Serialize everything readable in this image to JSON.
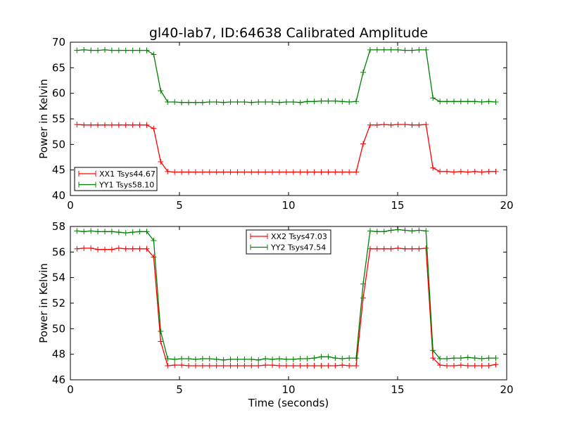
{
  "figure": {
    "title": "gl40-lab7, ID:64638 Calibrated Amplitude",
    "xlabel": "Time (seconds)"
  },
  "colors": {
    "xx": "#ff0000",
    "yy": "#008000"
  },
  "chart_data": [
    {
      "type": "line",
      "ylabel": "Power in Kelvin",
      "xlim": [
        0,
        20
      ],
      "ylim": [
        40,
        70
      ],
      "xticks": [
        0,
        5,
        10,
        15,
        20
      ],
      "yticks": [
        40,
        45,
        50,
        55,
        60,
        65,
        70
      ],
      "grid": false,
      "legend_position": "lower-left",
      "series": [
        {
          "name": "XX1 Tsys44.67",
          "color": "#ff0000",
          "x": [
            0.3,
            0.62,
            0.94,
            1.26,
            1.58,
            1.9,
            2.22,
            2.54,
            2.86,
            3.18,
            3.5,
            3.82,
            4.14,
            4.46,
            4.78,
            5.1,
            5.42,
            5.74,
            6.06,
            6.38,
            6.7,
            7.02,
            7.34,
            7.66,
            7.98,
            8.3,
            8.62,
            8.94,
            9.26,
            9.58,
            9.9,
            10.22,
            10.54,
            10.86,
            11.18,
            11.5,
            11.82,
            12.14,
            12.46,
            12.78,
            13.1,
            13.42,
            13.74,
            14.06,
            14.38,
            14.7,
            15.02,
            15.34,
            15.66,
            15.98,
            16.3,
            16.62,
            16.94,
            17.26,
            17.58,
            17.9,
            18.22,
            18.54,
            18.86,
            19.18,
            19.5
          ],
          "y": [
            53.9,
            53.8,
            53.8,
            53.8,
            53.8,
            53.8,
            53.8,
            53.8,
            53.8,
            53.8,
            53.8,
            53.1,
            46.6,
            44.7,
            44.6,
            44.6,
            44.6,
            44.6,
            44.6,
            44.6,
            44.6,
            44.6,
            44.6,
            44.6,
            44.6,
            44.6,
            44.6,
            44.6,
            44.6,
            44.6,
            44.6,
            44.6,
            44.6,
            44.6,
            44.6,
            44.6,
            44.6,
            44.6,
            44.6,
            44.6,
            44.6,
            50.1,
            53.8,
            53.8,
            53.9,
            53.8,
            53.9,
            53.9,
            53.8,
            53.8,
            53.9,
            45.4,
            44.7,
            44.7,
            44.6,
            44.7,
            44.6,
            44.7,
            44.6,
            44.7,
            44.7
          ]
        },
        {
          "name": "YY1 Tsys58.10",
          "color": "#008000",
          "x": [
            0.3,
            0.62,
            0.94,
            1.26,
            1.58,
            1.9,
            2.22,
            2.54,
            2.86,
            3.18,
            3.5,
            3.82,
            4.14,
            4.46,
            4.78,
            5.1,
            5.42,
            5.74,
            6.06,
            6.38,
            6.7,
            7.02,
            7.34,
            7.66,
            7.98,
            8.3,
            8.62,
            8.94,
            9.26,
            9.58,
            9.9,
            10.22,
            10.54,
            10.86,
            11.18,
            11.5,
            11.82,
            12.14,
            12.46,
            12.78,
            13.1,
            13.42,
            13.74,
            14.06,
            14.38,
            14.7,
            15.02,
            15.34,
            15.66,
            15.98,
            16.3,
            16.62,
            16.94,
            17.26,
            17.58,
            17.9,
            18.22,
            18.54,
            18.86,
            19.18,
            19.5
          ],
          "y": [
            68.4,
            68.5,
            68.4,
            68.4,
            68.5,
            68.4,
            68.4,
            68.4,
            68.4,
            68.4,
            68.4,
            67.6,
            60.5,
            58.3,
            58.3,
            58.2,
            58.2,
            58.2,
            58.2,
            58.3,
            58.3,
            58.2,
            58.3,
            58.3,
            58.3,
            58.2,
            58.3,
            58.3,
            58.3,
            58.2,
            58.3,
            58.3,
            58.2,
            58.4,
            58.4,
            58.5,
            58.5,
            58.5,
            58.4,
            58.3,
            58.4,
            64.1,
            68.5,
            68.5,
            68.5,
            68.5,
            68.5,
            68.4,
            68.4,
            68.5,
            68.5,
            59.1,
            58.4,
            58.4,
            58.4,
            58.4,
            58.4,
            58.4,
            58.3,
            58.4,
            58.3
          ]
        }
      ]
    },
    {
      "type": "line",
      "ylabel": "Power in Kelvin",
      "xlim": [
        0,
        20
      ],
      "ylim": [
        46,
        58
      ],
      "xticks": [
        0,
        5,
        10,
        15,
        20
      ],
      "yticks": [
        46,
        48,
        50,
        52,
        54,
        56,
        58
      ],
      "grid": false,
      "legend_position": "upper-center",
      "series": [
        {
          "name": "XX2 Tsys47.03",
          "color": "#ff0000",
          "x": [
            0.3,
            0.62,
            0.94,
            1.26,
            1.58,
            1.9,
            2.22,
            2.54,
            2.86,
            3.18,
            3.5,
            3.82,
            4.14,
            4.46,
            4.78,
            5.1,
            5.42,
            5.74,
            6.06,
            6.38,
            6.7,
            7.02,
            7.34,
            7.66,
            7.98,
            8.3,
            8.62,
            8.94,
            9.26,
            9.58,
            9.9,
            10.22,
            10.54,
            10.86,
            11.18,
            11.5,
            11.82,
            12.14,
            12.46,
            12.78,
            13.1,
            13.42,
            13.74,
            14.06,
            14.38,
            14.7,
            15.02,
            15.34,
            15.66,
            15.98,
            16.3,
            16.62,
            16.94,
            17.26,
            17.58,
            17.9,
            18.22,
            18.54,
            18.86,
            19.18,
            19.5
          ],
          "y": [
            56.25,
            56.3,
            56.3,
            56.2,
            56.2,
            56.2,
            56.3,
            56.25,
            56.25,
            56.25,
            56.25,
            55.6,
            49.0,
            47.1,
            47.15,
            47.15,
            47.1,
            47.1,
            47.1,
            47.1,
            47.1,
            47.1,
            47.1,
            47.1,
            47.1,
            47.1,
            47.1,
            47.15,
            47.15,
            47.1,
            47.1,
            47.1,
            47.1,
            47.1,
            47.1,
            47.1,
            47.1,
            47.1,
            47.15,
            47.1,
            47.1,
            52.4,
            56.25,
            56.25,
            56.25,
            56.25,
            56.3,
            56.25,
            56.25,
            56.25,
            56.3,
            47.7,
            47.15,
            47.1,
            47.1,
            47.15,
            47.1,
            47.1,
            47.1,
            47.1,
            47.2
          ]
        },
        {
          "name": "YY2 Tsys47.54",
          "color": "#008000",
          "x": [
            0.3,
            0.62,
            0.94,
            1.26,
            1.58,
            1.9,
            2.22,
            2.54,
            2.86,
            3.18,
            3.5,
            3.82,
            4.14,
            4.46,
            4.78,
            5.1,
            5.42,
            5.74,
            6.06,
            6.38,
            6.7,
            7.02,
            7.34,
            7.66,
            7.98,
            8.3,
            8.62,
            8.94,
            9.26,
            9.58,
            9.9,
            10.22,
            10.54,
            10.86,
            11.18,
            11.5,
            11.82,
            12.14,
            12.46,
            12.78,
            13.1,
            13.42,
            13.74,
            14.06,
            14.38,
            14.7,
            15.02,
            15.34,
            15.66,
            15.98,
            16.3,
            16.62,
            16.94,
            17.26,
            17.58,
            17.9,
            18.22,
            18.54,
            18.86,
            19.18,
            19.5
          ],
          "y": [
            57.65,
            57.6,
            57.65,
            57.6,
            57.6,
            57.6,
            57.55,
            57.5,
            57.55,
            57.6,
            57.6,
            56.9,
            49.8,
            47.65,
            47.6,
            47.65,
            47.65,
            47.6,
            47.65,
            47.65,
            47.6,
            47.55,
            47.6,
            47.6,
            47.6,
            47.6,
            47.55,
            47.65,
            47.6,
            47.65,
            47.6,
            47.6,
            47.65,
            47.65,
            47.7,
            47.8,
            47.8,
            47.7,
            47.65,
            47.7,
            47.7,
            53.5,
            57.65,
            57.6,
            57.6,
            57.7,
            57.75,
            57.7,
            57.65,
            57.7,
            57.65,
            48.3,
            47.65,
            47.65,
            47.7,
            47.7,
            47.75,
            47.7,
            47.65,
            47.7,
            47.7
          ]
        }
      ]
    }
  ]
}
